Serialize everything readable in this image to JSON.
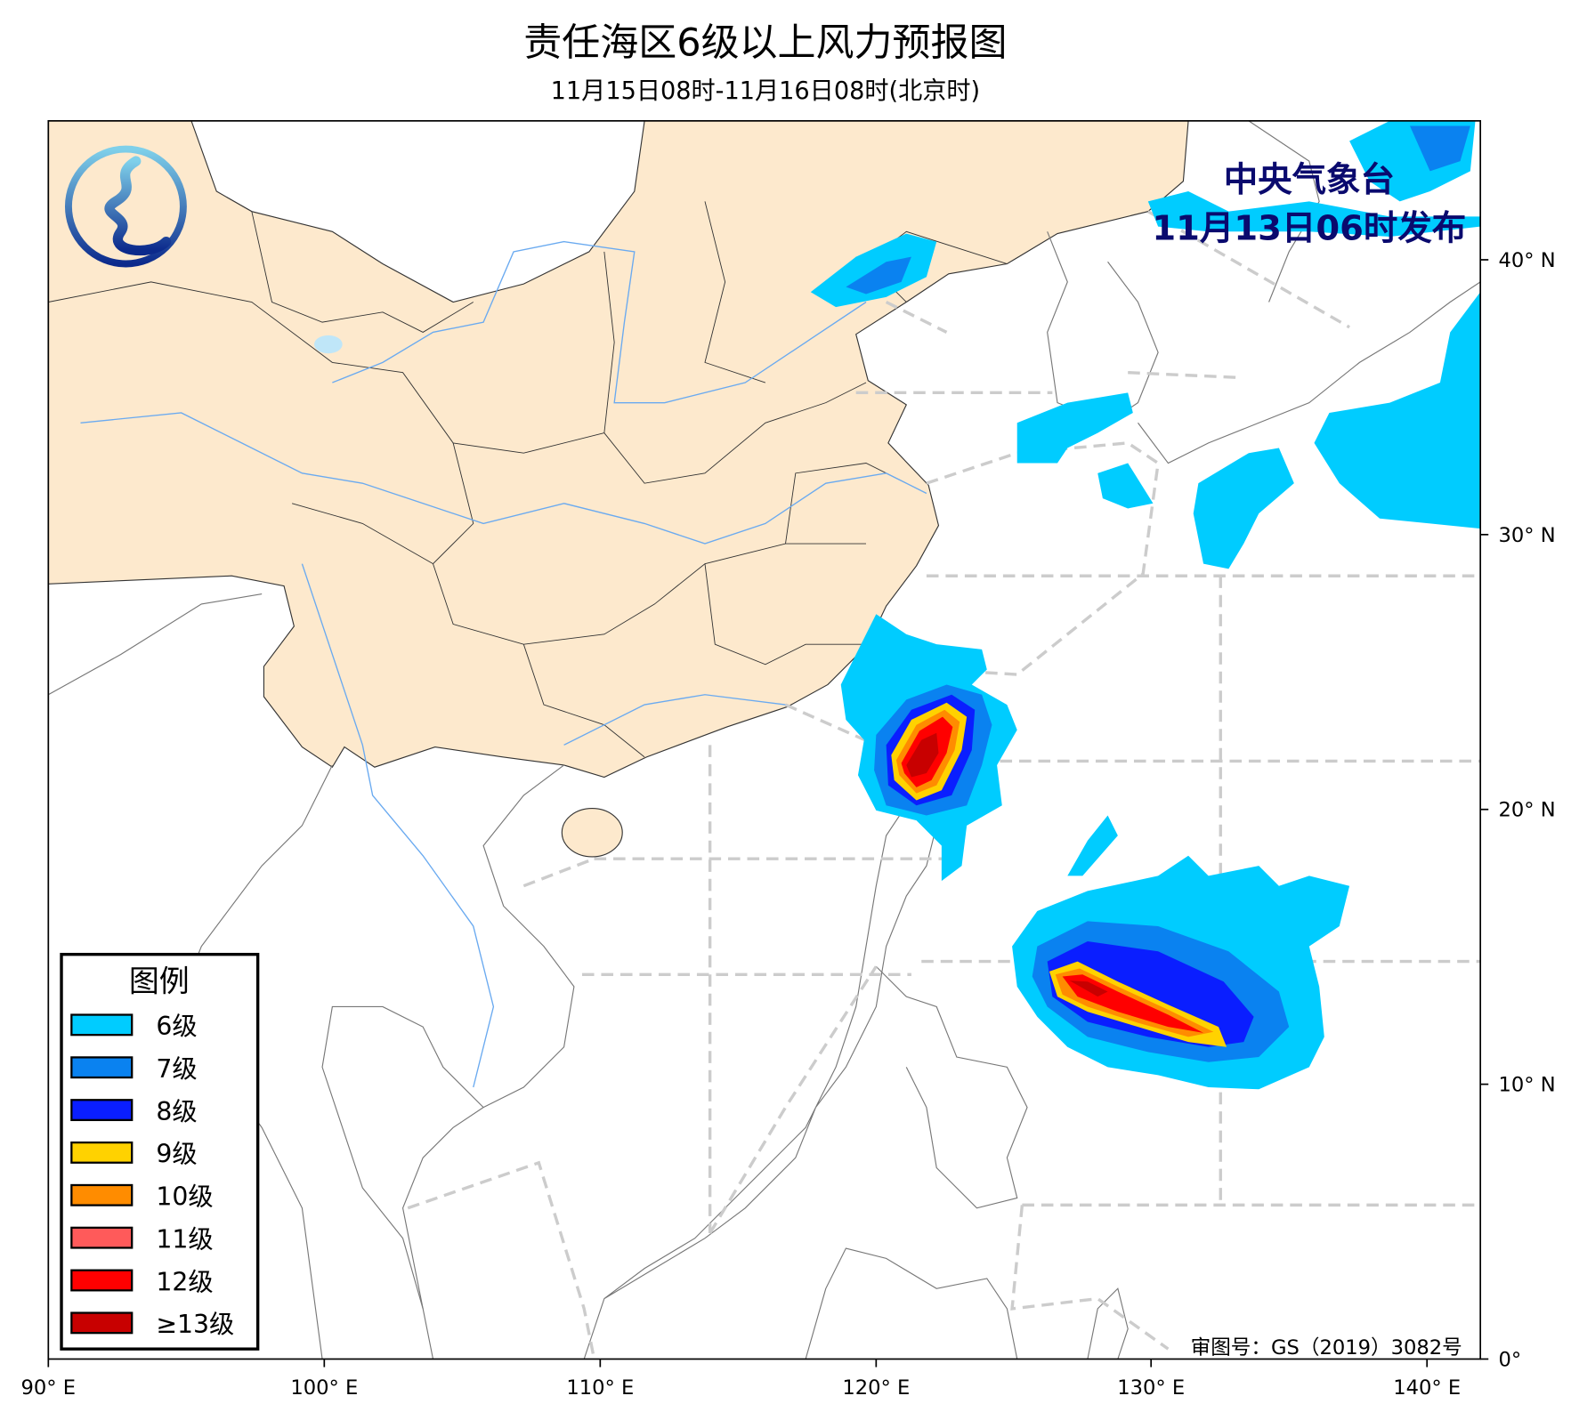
{
  "title": "责任海区6级以上风力预报图",
  "subtitle": "11月15日08时-11月16日08时(北京时)",
  "issuer": {
    "name": "中央气象台",
    "issued": "11月13日06时发布",
    "color": "#0a0a6e"
  },
  "map_approval": "审图号：GS（2019）3082号",
  "axes": {
    "lon_labels": [
      "90° E",
      "100° E",
      "110° E",
      "120° E",
      "130° E",
      "140° E"
    ],
    "lat_labels": [
      "0°",
      "10° N",
      "20° N",
      "30° N",
      "40° N"
    ]
  },
  "legend": {
    "title": "图例",
    "items": [
      {
        "label": "6级",
        "color": "#00ccff"
      },
      {
        "label": "7级",
        "color": "#0a82f0"
      },
      {
        "label": "8级",
        "color": "#0a1eff"
      },
      {
        "label": "9级",
        "color": "#ffd200"
      },
      {
        "label": "10级",
        "color": "#ff8c00"
      },
      {
        "label": "11级",
        "color": "#ff5a5a"
      },
      {
        "label": "12级",
        "color": "#ff0000"
      },
      {
        "label": "≥13级",
        "color": "#c80000"
      }
    ]
  },
  "colors": {
    "land_china": "#fde9cd",
    "sea_boundary": "#cccccc",
    "river": "#6aaaf0",
    "lake": "#bfe6f8"
  },
  "logo": {
    "icon": "cma-logo-icon"
  }
}
